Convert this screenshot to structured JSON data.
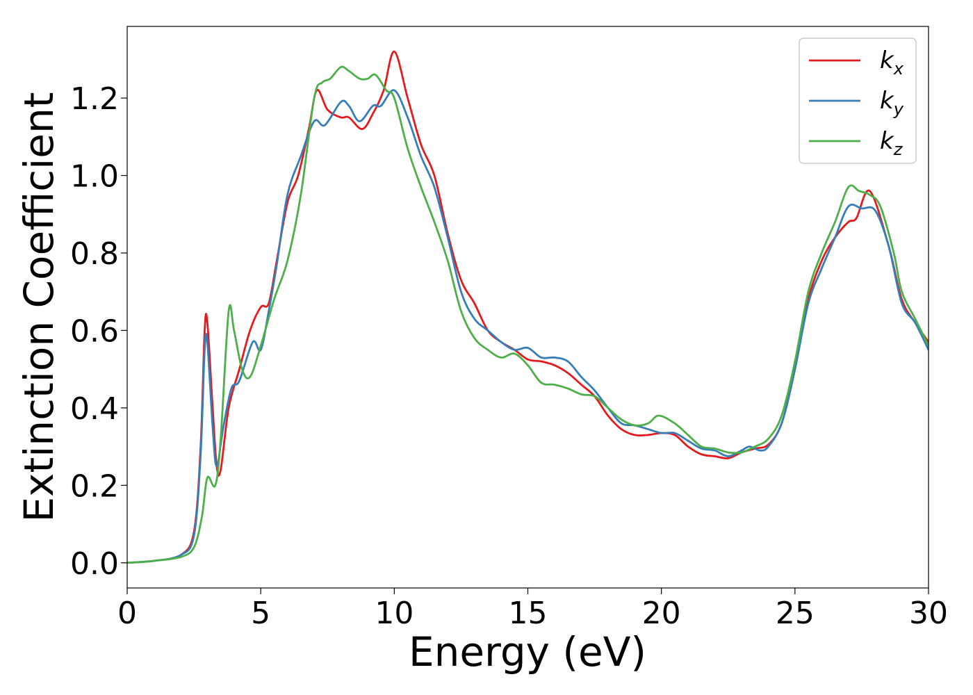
{
  "chart_data": {
    "type": "line",
    "xlabel": "Energy (eV)",
    "ylabel": "Extinction Coefficient",
    "xlim": [
      0,
      30
    ],
    "ylim": [
      -0.065,
      1.385
    ],
    "xticks": [
      0,
      5,
      10,
      15,
      20,
      25,
      30
    ],
    "xtick_labels": [
      "0",
      "5",
      "10",
      "15",
      "20",
      "25",
      "30"
    ],
    "yticks": [
      0.0,
      0.2,
      0.4,
      0.6,
      0.8,
      1.0,
      1.2
    ],
    "ytick_labels": [
      "0.0",
      "0.2",
      "0.4",
      "0.6",
      "0.8",
      "1.0",
      "1.2"
    ],
    "grid": false,
    "legend_position": "top-right",
    "series": [
      {
        "name": "k_x",
        "legend_base": "k",
        "legend_sub": "x",
        "color": "#e41a1c",
        "points": [
          [
            0,
            0
          ],
          [
            1,
            0.005
          ],
          [
            2,
            0.02
          ],
          [
            2.5,
            0.08
          ],
          [
            2.75,
            0.3
          ],
          [
            2.9,
            0.6
          ],
          [
            3.0,
            0.62
          ],
          [
            3.2,
            0.4
          ],
          [
            3.35,
            0.25
          ],
          [
            3.5,
            0.24
          ],
          [
            3.8,
            0.4
          ],
          [
            4.2,
            0.5
          ],
          [
            4.6,
            0.6
          ],
          [
            5.0,
            0.66
          ],
          [
            5.3,
            0.67
          ],
          [
            5.6,
            0.78
          ],
          [
            6.0,
            0.93
          ],
          [
            6.4,
            1.0
          ],
          [
            6.8,
            1.12
          ],
          [
            7.1,
            1.22
          ],
          [
            7.5,
            1.17
          ],
          [
            8.0,
            1.15
          ],
          [
            8.3,
            1.15
          ],
          [
            8.8,
            1.12
          ],
          [
            9.2,
            1.16
          ],
          [
            9.6,
            1.22
          ],
          [
            10.0,
            1.32
          ],
          [
            10.5,
            1.2
          ],
          [
            11.0,
            1.08
          ],
          [
            11.5,
            1.0
          ],
          [
            12.0,
            0.85
          ],
          [
            12.5,
            0.73
          ],
          [
            13.0,
            0.67
          ],
          [
            13.5,
            0.6
          ],
          [
            14.0,
            0.57
          ],
          [
            14.5,
            0.55
          ],
          [
            15.0,
            0.525
          ],
          [
            15.5,
            0.52
          ],
          [
            16.0,
            0.51
          ],
          [
            16.5,
            0.49
          ],
          [
            17.0,
            0.46
          ],
          [
            17.5,
            0.43
          ],
          [
            18.0,
            0.38
          ],
          [
            18.5,
            0.345
          ],
          [
            19.0,
            0.33
          ],
          [
            19.5,
            0.33
          ],
          [
            20.0,
            0.335
          ],
          [
            20.5,
            0.33
          ],
          [
            21.0,
            0.3
          ],
          [
            21.5,
            0.28
          ],
          [
            22.0,
            0.275
          ],
          [
            22.5,
            0.27
          ],
          [
            23.0,
            0.285
          ],
          [
            23.5,
            0.295
          ],
          [
            24.0,
            0.305
          ],
          [
            24.5,
            0.36
          ],
          [
            25.0,
            0.5
          ],
          [
            25.5,
            0.68
          ],
          [
            26.0,
            0.78
          ],
          [
            26.5,
            0.84
          ],
          [
            27.0,
            0.88
          ],
          [
            27.3,
            0.89
          ],
          [
            27.8,
            0.96
          ],
          [
            28.5,
            0.82
          ],
          [
            29.0,
            0.68
          ],
          [
            29.5,
            0.62
          ],
          [
            30.0,
            0.57
          ]
        ]
      },
      {
        "name": "k_y",
        "legend_base": "k",
        "legend_sub": "y",
        "color": "#377eb8",
        "points": [
          [
            0,
            0
          ],
          [
            1,
            0.005
          ],
          [
            2,
            0.02
          ],
          [
            2.5,
            0.07
          ],
          [
            2.75,
            0.28
          ],
          [
            2.9,
            0.55
          ],
          [
            3.0,
            0.57
          ],
          [
            3.2,
            0.35
          ],
          [
            3.35,
            0.25
          ],
          [
            3.6,
            0.35
          ],
          [
            3.9,
            0.45
          ],
          [
            4.2,
            0.47
          ],
          [
            4.7,
            0.57
          ],
          [
            5.0,
            0.55
          ],
          [
            5.3,
            0.65
          ],
          [
            5.6,
            0.77
          ],
          [
            6.0,
            0.95
          ],
          [
            6.5,
            1.05
          ],
          [
            7.0,
            1.14
          ],
          [
            7.4,
            1.13
          ],
          [
            8.0,
            1.19
          ],
          [
            8.3,
            1.18
          ],
          [
            8.7,
            1.14
          ],
          [
            9.2,
            1.18
          ],
          [
            9.5,
            1.18
          ],
          [
            10.0,
            1.22
          ],
          [
            10.5,
            1.15
          ],
          [
            11.0,
            1.05
          ],
          [
            11.5,
            0.97
          ],
          [
            12.0,
            0.84
          ],
          [
            12.5,
            0.7
          ],
          [
            13.0,
            0.63
          ],
          [
            13.5,
            0.6
          ],
          [
            14.0,
            0.57
          ],
          [
            14.5,
            0.55
          ],
          [
            15.0,
            0.555
          ],
          [
            15.5,
            0.53
          ],
          [
            16.0,
            0.53
          ],
          [
            16.5,
            0.52
          ],
          [
            17.0,
            0.48
          ],
          [
            17.5,
            0.445
          ],
          [
            18.0,
            0.4
          ],
          [
            18.5,
            0.36
          ],
          [
            19.0,
            0.355
          ],
          [
            19.5,
            0.345
          ],
          [
            20.0,
            0.335
          ],
          [
            20.5,
            0.335
          ],
          [
            21.0,
            0.315
          ],
          [
            21.5,
            0.295
          ],
          [
            22.0,
            0.29
          ],
          [
            22.5,
            0.275
          ],
          [
            23.0,
            0.29
          ],
          [
            23.3,
            0.3
          ],
          [
            23.7,
            0.29
          ],
          [
            24.0,
            0.3
          ],
          [
            24.5,
            0.36
          ],
          [
            25.0,
            0.5
          ],
          [
            25.5,
            0.67
          ],
          [
            26.0,
            0.76
          ],
          [
            26.5,
            0.84
          ],
          [
            27.0,
            0.92
          ],
          [
            27.5,
            0.915
          ],
          [
            28.0,
            0.91
          ],
          [
            28.5,
            0.82
          ],
          [
            29.0,
            0.67
          ],
          [
            29.5,
            0.62
          ],
          [
            30.0,
            0.55
          ]
        ]
      },
      {
        "name": "k_z",
        "legend_base": "k",
        "legend_sub": "z",
        "color": "#4daf4a",
        "points": [
          [
            0,
            0
          ],
          [
            1,
            0.005
          ],
          [
            2,
            0.015
          ],
          [
            2.5,
            0.04
          ],
          [
            2.8,
            0.12
          ],
          [
            3.0,
            0.22
          ],
          [
            3.3,
            0.2
          ],
          [
            3.5,
            0.32
          ],
          [
            3.8,
            0.65
          ],
          [
            4.0,
            0.6
          ],
          [
            4.3,
            0.5
          ],
          [
            4.6,
            0.48
          ],
          [
            5.0,
            0.56
          ],
          [
            5.5,
            0.68
          ],
          [
            6.0,
            0.78
          ],
          [
            6.5,
            0.95
          ],
          [
            7.0,
            1.2
          ],
          [
            7.3,
            1.24
          ],
          [
            7.6,
            1.25
          ],
          [
            8.0,
            1.28
          ],
          [
            8.3,
            1.27
          ],
          [
            8.7,
            1.25
          ],
          [
            9.0,
            1.25
          ],
          [
            9.3,
            1.26
          ],
          [
            9.7,
            1.22
          ],
          [
            10.0,
            1.2
          ],
          [
            10.5,
            1.07
          ],
          [
            11.0,
            0.97
          ],
          [
            11.5,
            0.88
          ],
          [
            12.0,
            0.78
          ],
          [
            12.5,
            0.65
          ],
          [
            13.0,
            0.58
          ],
          [
            13.5,
            0.55
          ],
          [
            14.0,
            0.53
          ],
          [
            14.5,
            0.54
          ],
          [
            15.0,
            0.51
          ],
          [
            15.5,
            0.465
          ],
          [
            16.0,
            0.46
          ],
          [
            16.5,
            0.45
          ],
          [
            17.0,
            0.435
          ],
          [
            17.5,
            0.43
          ],
          [
            18.0,
            0.4
          ],
          [
            18.5,
            0.37
          ],
          [
            19.0,
            0.355
          ],
          [
            19.5,
            0.36
          ],
          [
            19.9,
            0.38
          ],
          [
            20.5,
            0.36
          ],
          [
            21.0,
            0.33
          ],
          [
            21.5,
            0.3
          ],
          [
            22.0,
            0.295
          ],
          [
            22.5,
            0.285
          ],
          [
            23.0,
            0.285
          ],
          [
            23.5,
            0.3
          ],
          [
            24.0,
            0.32
          ],
          [
            24.5,
            0.38
          ],
          [
            25.0,
            0.52
          ],
          [
            25.5,
            0.7
          ],
          [
            26.0,
            0.8
          ],
          [
            26.5,
            0.88
          ],
          [
            27.0,
            0.97
          ],
          [
            27.4,
            0.96
          ],
          [
            27.8,
            0.95
          ],
          [
            28.2,
            0.92
          ],
          [
            28.7,
            0.8
          ],
          [
            29.0,
            0.7
          ],
          [
            29.5,
            0.63
          ],
          [
            30.0,
            0.56
          ]
        ]
      }
    ]
  }
}
